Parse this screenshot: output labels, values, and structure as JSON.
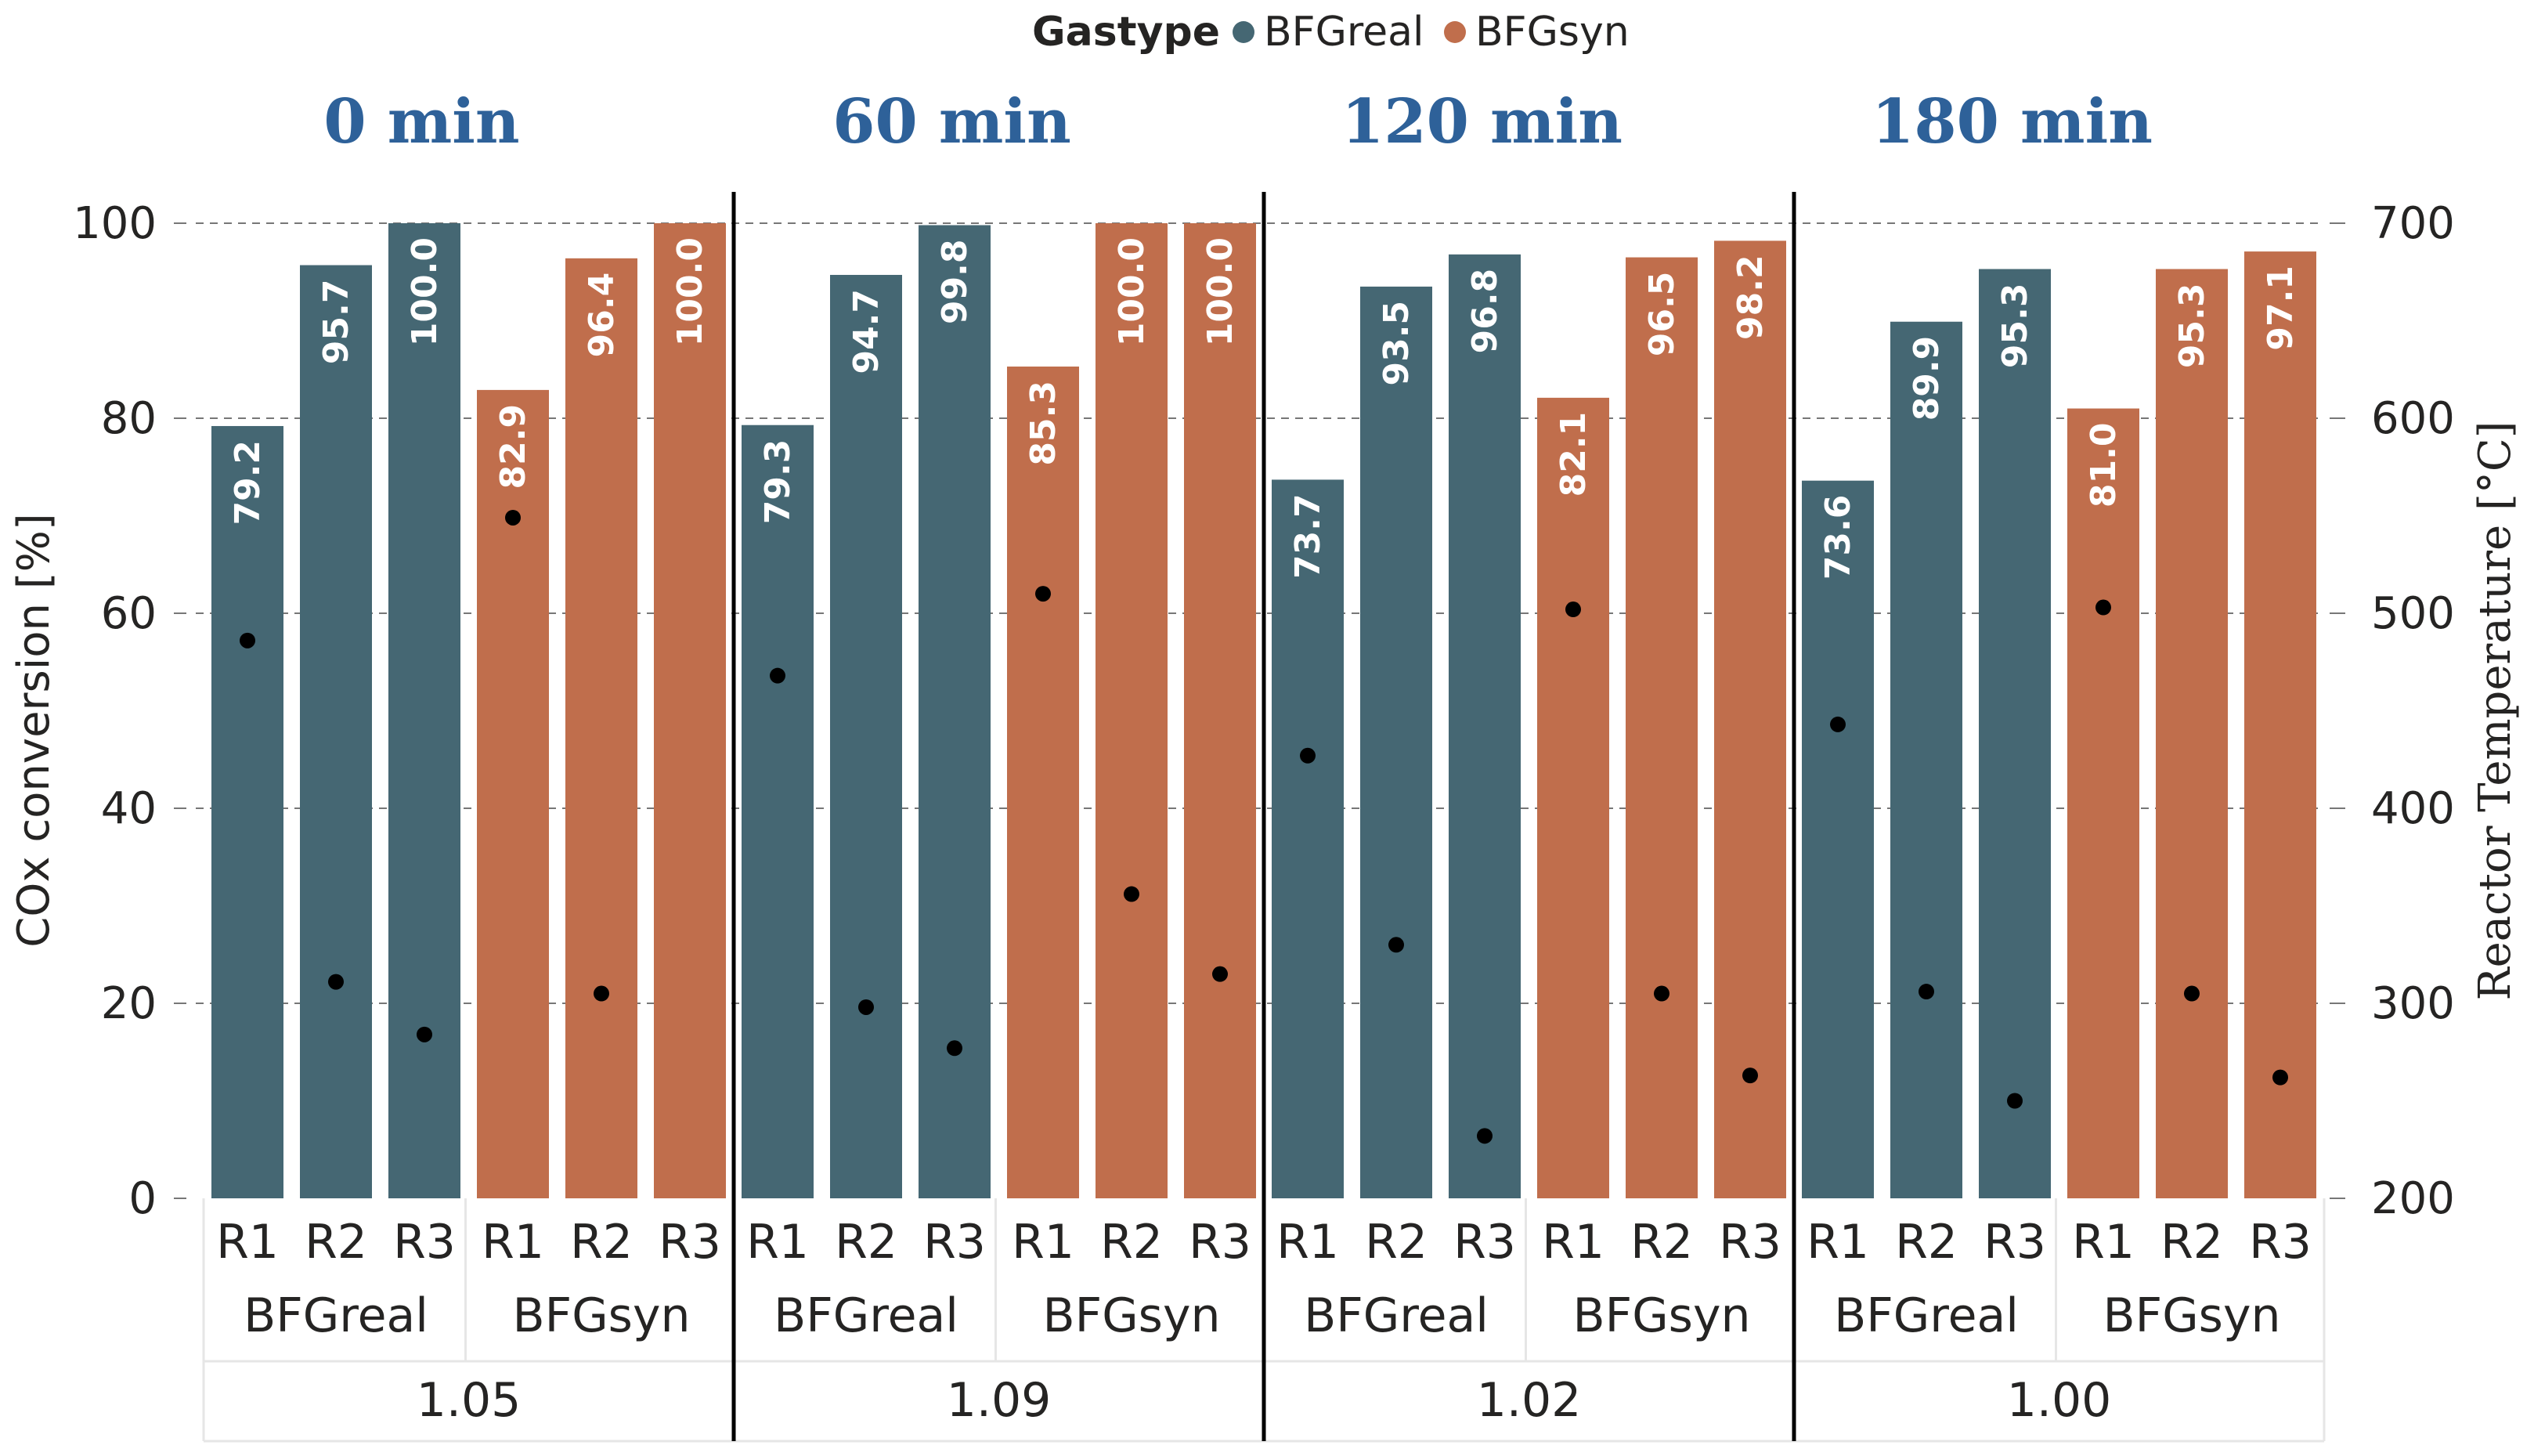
{
  "colors": {
    "real": "#456773",
    "syn": "#C06E4C",
    "period_title": "#2E6199",
    "grid": "#777777",
    "axis_text": "#252423",
    "point": "#000000",
    "label_text": "#ffffff",
    "separator": "#000000",
    "table_line": "#e6e6e6"
  },
  "legend": {
    "title": "Gastype",
    "items": [
      {
        "label": "BFGreal",
        "color_key": "real"
      },
      {
        "label": "BFGsyn",
        "color_key": "syn"
      }
    ]
  },
  "chart_data": {
    "type": "bar",
    "title": "",
    "ylabel_left": "COx conversion [%]",
    "ylabel_right": "Reactor Temperature [°C]",
    "ylim_left": [
      0,
      100
    ],
    "ylim_right": [
      200,
      700
    ],
    "yticks_left": [
      0,
      20,
      40,
      60,
      80,
      100
    ],
    "yticks_right": [
      200,
      300,
      400,
      500,
      600,
      700
    ],
    "gridlines": true,
    "groups": [
      {
        "period": "0 min",
        "ratio": "1.05",
        "gastypes": [
          {
            "gastype": "BFGreal",
            "reactors": [
              "R1",
              "R2",
              "R3"
            ],
            "conversion": [
              79.2,
              95.7,
              100.0
            ],
            "conversion_labels": [
              "79.2",
              "95.7",
              "100.0"
            ],
            "temperature": [
              486,
              311,
              284
            ]
          },
          {
            "gastype": "BFGsyn",
            "reactors": [
              "R1",
              "R2",
              "R3"
            ],
            "conversion": [
              82.9,
              96.4,
              100.0
            ],
            "conversion_labels": [
              "82.9",
              "96.4",
              "100.0"
            ],
            "temperature": [
              549,
              305,
              null
            ]
          }
        ]
      },
      {
        "period": "60 min",
        "ratio": "1.09",
        "gastypes": [
          {
            "gastype": "BFGreal",
            "reactors": [
              "R1",
              "R2",
              "R3"
            ],
            "conversion": [
              79.3,
              94.7,
              99.8
            ],
            "conversion_labels": [
              "79.3",
              "94.7",
              "99.8"
            ],
            "temperature": [
              468,
              298,
              277
            ]
          },
          {
            "gastype": "BFGsyn",
            "reactors": [
              "R1",
              "R2",
              "R3"
            ],
            "conversion": [
              85.3,
              100.0,
              100.0
            ],
            "conversion_labels": [
              "85.3",
              "100.0",
              "100.0"
            ],
            "temperature": [
              510,
              356,
              315
            ]
          }
        ]
      },
      {
        "period": "120 min",
        "ratio": "1.02",
        "gastypes": [
          {
            "gastype": "BFGreal",
            "reactors": [
              "R1",
              "R2",
              "R3"
            ],
            "conversion": [
              73.7,
              93.5,
              96.8
            ],
            "conversion_labels": [
              "73.7",
              "93.5",
              "96.8"
            ],
            "temperature": [
              427,
              330,
              232
            ]
          },
          {
            "gastype": "BFGsyn",
            "reactors": [
              "R1",
              "R2",
              "R3"
            ],
            "conversion": [
              82.1,
              96.5,
              98.2
            ],
            "conversion_labels": [
              "82.1",
              "96.5",
              "98.2"
            ],
            "temperature": [
              502,
              305,
              263
            ]
          }
        ]
      },
      {
        "period": "180 min",
        "ratio": "1.00",
        "gastypes": [
          {
            "gastype": "BFGreal",
            "reactors": [
              "R1",
              "R2",
              "R3"
            ],
            "conversion": [
              73.6,
              89.9,
              95.3
            ],
            "conversion_labels": [
              "73.6",
              "89.9",
              "95.3"
            ],
            "temperature": [
              443,
              306,
              250
            ]
          },
          {
            "gastype": "BFGsyn",
            "reactors": [
              "R1",
              "R2",
              "R3"
            ],
            "conversion": [
              81.0,
              95.3,
              97.1
            ],
            "conversion_labels": [
              "81.0",
              "95.3",
              "97.1"
            ],
            "temperature": [
              503,
              305,
              262
            ]
          }
        ]
      }
    ]
  }
}
